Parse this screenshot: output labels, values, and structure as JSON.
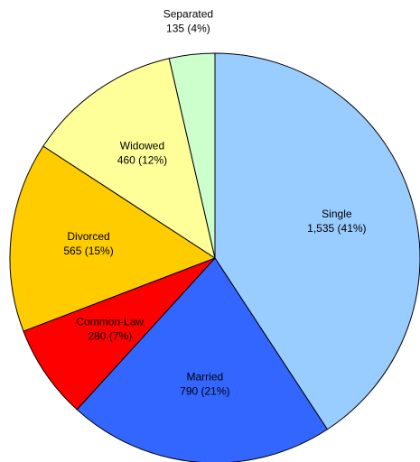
{
  "chart_data": {
    "type": "pie",
    "categories": [
      "Single",
      "Married",
      "Common-Law",
      "Divorced",
      "Widowed",
      "Separated"
    ],
    "values": [
      1535,
      790,
      280,
      565,
      460,
      135
    ],
    "value_labels": [
      "1,535 (41%)",
      "790 (21%)",
      "280 (7%)",
      "565 (15%)",
      "460 (12%)",
      "135 (4%)"
    ],
    "colors": [
      "#99ccff",
      "#3366ff",
      "#ff0000",
      "#ffcc00",
      "#ffff99",
      "#ccffcc"
    ]
  }
}
